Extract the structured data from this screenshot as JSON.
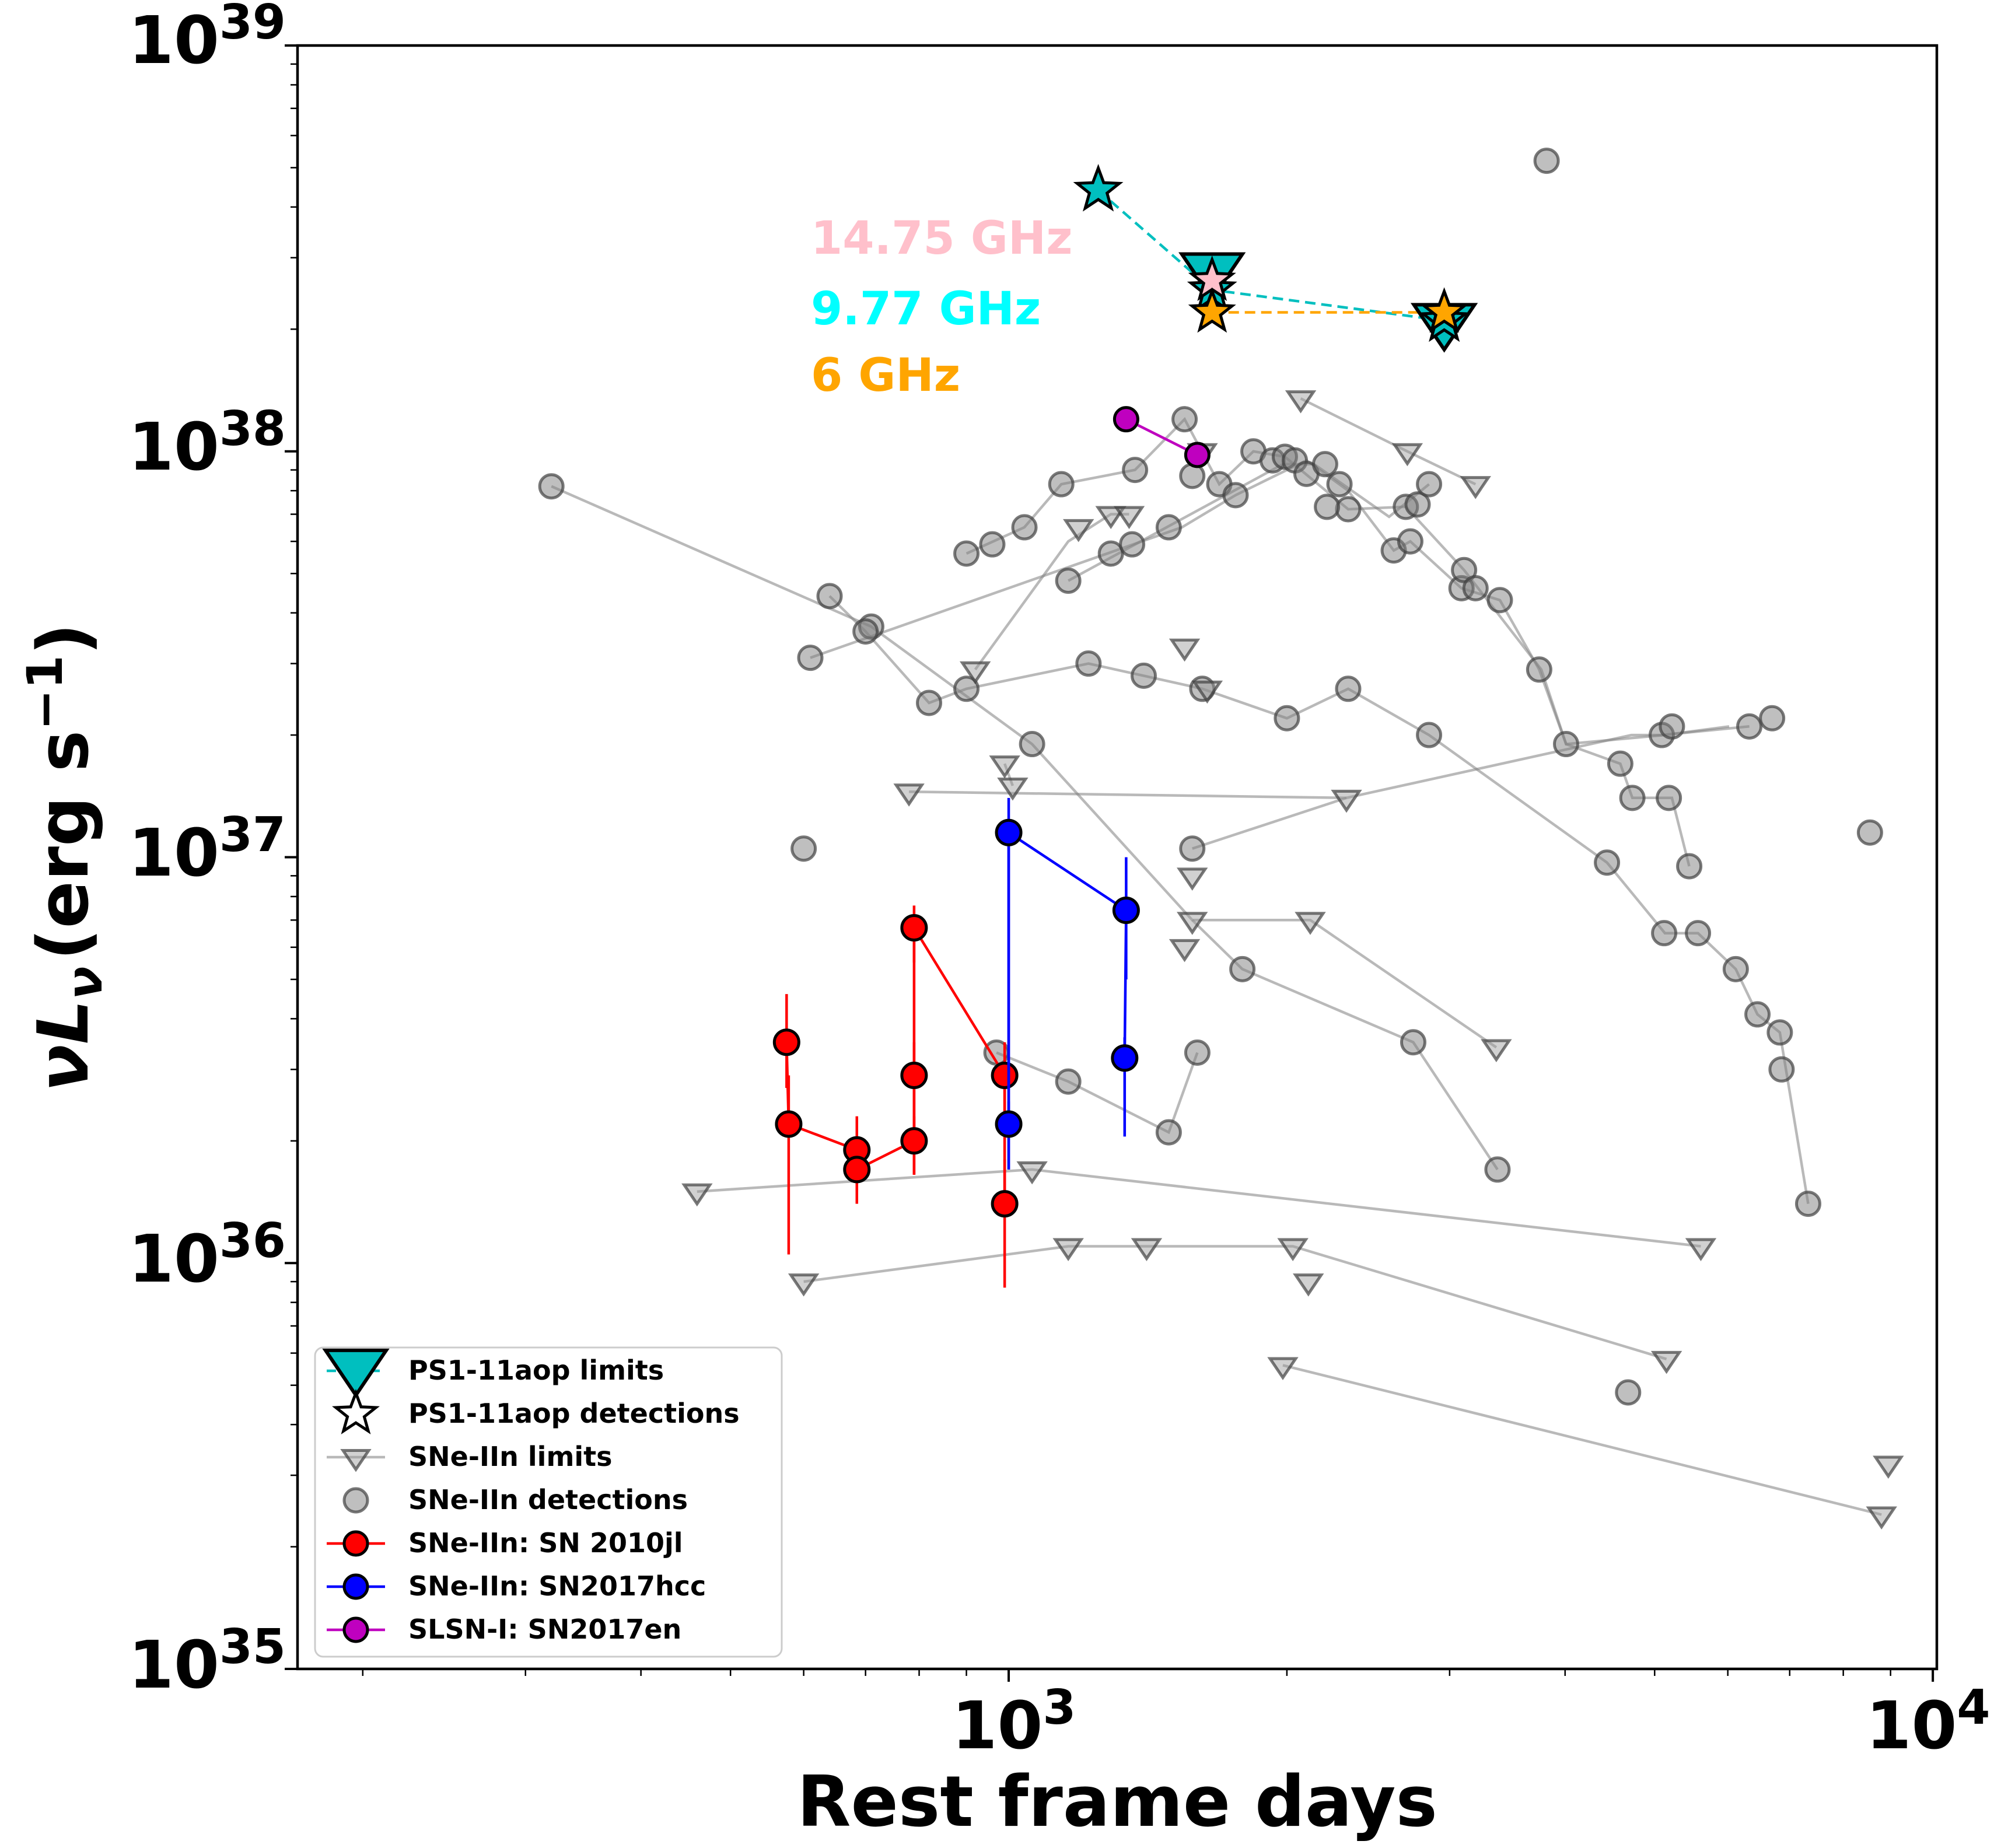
{
  "chart_data": {
    "type": "scatter",
    "xlabel": "Rest frame days",
    "ylabel": "νL",
    "ylabel_sub": "ν",
    "ylabel_unit_open": "(erg s",
    "ylabel_unit_sup": "−1",
    "ylabel_unit_close": ")",
    "x_scale": "log",
    "y_scale": "log",
    "xlim": [
      170,
      10100
    ],
    "ylim": [
      1e+35,
      1e+39
    ],
    "x_ticks": [
      {
        "value": 1000,
        "base": "10",
        "exp": "3"
      },
      {
        "value": 10000,
        "base": "10",
        "exp": "4"
      }
    ],
    "y_ticks": [
      {
        "value": 1e+35,
        "base": "10",
        "exp": "35"
      },
      {
        "value": 1e+36,
        "base": "10",
        "exp": "36"
      },
      {
        "value": 1e+37,
        "base": "10",
        "exp": "37"
      },
      {
        "value": 1e+38,
        "base": "10",
        "exp": "38"
      },
      {
        "value": 1e+39,
        "base": "10",
        "exp": "39"
      }
    ],
    "grid": false,
    "legend_position": "bottom-left",
    "legend": [
      {
        "label": "PS1-11aop limits",
        "marker": "triangle",
        "color": "#00bfbf",
        "line": "dashed",
        "big": true
      },
      {
        "label": "PS1-11aop detections",
        "marker": "star",
        "color": "#ffffff",
        "line": "none"
      },
      {
        "label": "SNe-IIn limits",
        "marker": "triangle",
        "color": "#808080",
        "line": "solid"
      },
      {
        "label": "SNe-IIn detections",
        "marker": "circle",
        "color": "#808080",
        "line": "none"
      },
      {
        "label": "SNe-IIn: SN 2010jl",
        "marker": "circle",
        "color": "#ff0000",
        "line": "solid"
      },
      {
        "label": "SNe-IIn: SN2017hcc",
        "marker": "circle",
        "color": "#0000ff",
        "line": "solid"
      },
      {
        "label": "SLSN-I: SN2017en",
        "marker": "circle",
        "color": "#bf00bf",
        "line": "solid"
      }
    ],
    "annotations": [
      {
        "text": "14.75 GHz",
        "color": "#ffc0cb"
      },
      {
        "text": "9.77 GHz",
        "color": "#00ffff"
      },
      {
        "text": "6 GHz",
        "color": "#ffa500"
      }
    ],
    "background_lines": [
      {
        "points": [
          [
            320,
            8.2e+37
          ],
          [
            710,
            3.7e+37
          ],
          [
            1060,
            1.9e+37
          ],
          [
            1580,
            7e+36
          ],
          [
            2120,
            7e+36
          ],
          [
            3370,
            3.4e+36
          ]
        ]
      },
      {
        "points": [
          [
            610,
            3.1e+37
          ],
          [
            1540,
            6.5e+37
          ],
          [
            1760,
            7.8e+37
          ],
          [
            2100,
            9.5e+37
          ],
          [
            2330,
            8e+37
          ],
          [
            2610,
            5.7e+37
          ],
          [
            2720,
            6e+37
          ],
          [
            3090,
            4.6e+37
          ],
          [
            3400,
            4.3e+37
          ],
          [
            3750,
            2.9e+37
          ],
          [
            4010,
            1.9e+37
          ],
          [
            4590,
            1.7e+37
          ],
          [
            4730,
            1.4e+37
          ],
          [
            5220,
            1.4e+37
          ],
          [
            5450,
            9.5e+36
          ]
        ]
      },
      {
        "points": [
          [
            640,
            4.4e+37
          ],
          [
            700,
            3.6e+37
          ],
          [
            820,
            2.4e+37
          ],
          [
            900,
            2.6e+37
          ],
          [
            1220,
            3e+37
          ],
          [
            1400,
            2.8e+37
          ],
          [
            1620,
            2.6e+37
          ],
          [
            2000,
            2.2e+37
          ],
          [
            2330,
            2.6e+37
          ],
          [
            2850,
            2e+37
          ],
          [
            4440,
            9.7e+36
          ],
          [
            5130,
            6.5e+36
          ],
          [
            5570,
            6.5e+36
          ],
          [
            6120,
            5.3e+36
          ],
          [
            6460,
            4.1e+36
          ],
          [
            6830,
            3.7e+36
          ],
          [
            7330,
            1.4e+36
          ]
        ]
      },
      {
        "points": [
          [
            900,
            5.6e+37
          ],
          [
            1040,
            6.5e+37
          ],
          [
            1140,
            8.3e+37
          ],
          [
            1370,
            9e+37
          ],
          [
            1550,
            1.2e+38
          ],
          [
            1690,
            8.3e+37
          ],
          [
            1840,
            1e+38
          ],
          [
            1990,
            9.7e+37
          ],
          [
            2330,
            7.2e+37
          ],
          [
            2690,
            7.3e+37
          ],
          [
            3110,
            5.1e+37
          ],
          [
            3770,
            2.9e+37
          ],
          [
            4010,
            1.9e+37
          ],
          [
            5120,
            2e+37
          ],
          [
            6020,
            2.1e+37
          ]
        ]
      },
      {
        "points": [
          [
            1160,
            4.8e+37
          ],
          [
            1980,
            9.3e+37
          ],
          [
            2140,
            9.3e+37
          ],
          [
            2580,
            6.9e+37
          ],
          [
            2850,
            8.3e+37
          ]
        ]
      },
      {
        "points": [
          [
            970,
            3.3e+36
          ],
          [
            1160,
            2.8e+36
          ],
          [
            1490,
            2.1e+36
          ],
          [
            1600,
            3.3e+36
          ]
        ]
      },
      {
        "points": [
          [
            1580,
            1.05e+37
          ],
          [
            2320,
            1.4e+37
          ],
          [
            4720,
            2e+37
          ],
          [
            5090,
            2e+37
          ],
          [
            6330,
            2.1e+37
          ]
        ]
      },
      {
        "points": [
          [
            1580,
            7e+36
          ],
          [
            1790,
            5.3e+36
          ],
          [
            2740,
            3.5e+36
          ],
          [
            3380,
            1.7e+36
          ]
        ]
      },
      {
        "points": [
          [
            460,
            1.5e+36
          ],
          [
            1060,
            1.7e+36
          ],
          [
            5610,
            1.1e+36
          ]
        ]
      },
      {
        "points": [
          [
            600,
            9e+35
          ],
          [
            1160,
            1.1e+36
          ],
          [
            1410,
            1.1e+36
          ],
          [
            2030,
            1.1e+36
          ],
          [
            5150,
            5.8e+35
          ]
        ]
      },
      {
        "points": [
          [
            1980,
            5.6e+35
          ],
          [
            8800,
            2.4e+35
          ]
        ]
      },
      {
        "points": [
          [
            780,
            1.45e+37
          ],
          [
            2320,
            1.4e+37
          ]
        ]
      },
      {
        "points": [
          [
            920,
            2.9e+37
          ],
          [
            1160,
            6e+37
          ],
          [
            1290,
            7e+37
          ],
          [
            1350,
            7e+37
          ]
        ]
      },
      {
        "points": [
          [
            2070,
            1.35e+38
          ],
          [
            2700,
            1e+38
          ],
          [
            3200,
            8.3e+37
          ]
        ]
      },
      {
        "points": [
          [
            990,
            1.7e+37
          ],
          [
            1010,
            1.5e+37
          ]
        ]
      }
    ],
    "background_detections": [
      [
        320,
        8.2e+37
      ],
      [
        710,
        3.7e+37
      ],
      [
        1060,
        1.9e+37
      ],
      [
        610,
        3.1e+37
      ],
      [
        640,
        4.4e+37
      ],
      [
        700,
        3.6e+37
      ],
      [
        820,
        2.4e+37
      ],
      [
        900,
        2.6e+37
      ],
      [
        900,
        5.6e+37
      ],
      [
        960,
        5.9e+37
      ],
      [
        1040,
        6.5e+37
      ],
      [
        1140,
        8.3e+37
      ],
      [
        1370,
        9e+37
      ],
      [
        1550,
        1.2e+38
      ],
      [
        1580,
        8.7e+37
      ],
      [
        1690,
        8.3e+37
      ],
      [
        1760,
        7.8e+37
      ],
      [
        1840,
        1e+38
      ],
      [
        1930,
        9.5e+37
      ],
      [
        1990,
        9.7e+37
      ],
      [
        2040,
        9.5e+37
      ],
      [
        2100,
        8.8e+37
      ],
      [
        2200,
        9.3e+37
      ],
      [
        2280,
        8.3e+37
      ],
      [
        2330,
        7.2e+37
      ],
      [
        2210,
        7.3e+37
      ],
      [
        2610,
        5.7e+37
      ],
      [
        2690,
        7.3e+37
      ],
      [
        2720,
        6e+37
      ],
      [
        2770,
        7.4e+37
      ],
      [
        2850,
        8.3e+37
      ],
      [
        3090,
        4.6e+37
      ],
      [
        3110,
        5.1e+37
      ],
      [
        3200,
        4.6e+37
      ],
      [
        3400,
        4.3e+37
      ],
      [
        3750,
        2.9e+37
      ],
      [
        4010,
        1.9e+37
      ],
      [
        4590,
        1.7e+37
      ],
      [
        4730,
        1.4e+37
      ],
      [
        5090,
        2e+37
      ],
      [
        5220,
        2.1e+37
      ],
      [
        5450,
        9.5e+36
      ],
      [
        5120,
        6.5e+36
      ],
      [
        5570,
        6.5e+36
      ],
      [
        6120,
        5.3e+36
      ],
      [
        6460,
        4.1e+36
      ],
      [
        6830,
        3.7e+36
      ],
      [
        6860,
        3e+36
      ],
      [
        7330,
        1.4e+36
      ],
      [
        6330,
        2.1e+37
      ],
      [
        6700,
        2.2e+37
      ],
      [
        1160,
        4.8e+37
      ],
      [
        1290,
        5.6e+37
      ],
      [
        1360,
        5.9e+37
      ],
      [
        1490,
        6.5e+37
      ],
      [
        1220,
        3e+37
      ],
      [
        1400,
        2.8e+37
      ],
      [
        1620,
        2.6e+37
      ],
      [
        2000,
        2.2e+37
      ],
      [
        2330,
        2.6e+37
      ],
      [
        2850,
        2e+37
      ],
      [
        4440,
        9.7e+36
      ],
      [
        5180,
        1.4e+37
      ],
      [
        970,
        3.3e+36
      ],
      [
        1160,
        2.8e+36
      ],
      [
        1490,
        2.1e+36
      ],
      [
        1600,
        3.3e+36
      ],
      [
        1580,
        1.05e+37
      ],
      [
        1790,
        5.3e+36
      ],
      [
        2740,
        3.5e+36
      ],
      [
        3380,
        1.7e+36
      ],
      [
        600,
        1.05e+37
      ],
      [
        3820,
        5.2e+38
      ],
      [
        4680,
        4.8e+35
      ],
      [
        8550,
        1.15e+37
      ]
    ],
    "background_limits": [
      [
        460,
        1.5e+36
      ],
      [
        1060,
        1.7e+36
      ],
      [
        5610,
        1.1e+36
      ],
      [
        600,
        9e+35
      ],
      [
        1160,
        1.1e+36
      ],
      [
        1410,
        1.1e+36
      ],
      [
        2030,
        1.1e+36
      ],
      [
        2110,
        9e+35
      ],
      [
        5150,
        5.8e+35
      ],
      [
        1980,
        5.6e+35
      ],
      [
        8800,
        2.4e+35
      ],
      [
        8950,
        3.2e+35
      ],
      [
        780,
        1.45e+37
      ],
      [
        2320,
        1.4e+37
      ],
      [
        920,
        2.9e+37
      ],
      [
        1190,
        6.5e+37
      ],
      [
        1290,
        7e+37
      ],
      [
        1350,
        7e+37
      ],
      [
        1550,
        3.3e+37
      ],
      [
        1640,
        2.6e+37
      ],
      [
        2070,
        1.35e+38
      ],
      [
        2700,
        1e+38
      ],
      [
        3200,
        8.3e+37
      ],
      [
        1550,
        6e+36
      ],
      [
        1580,
        7e+36
      ],
      [
        2120,
        7e+36
      ],
      [
        3370,
        3.4e+36
      ],
      [
        1580,
        9e+36
      ],
      [
        990,
        1.7e+37
      ],
      [
        1010,
        1.5e+37
      ],
      [
        1620,
        1e+38
      ]
    ],
    "sn2010jl": {
      "points": [
        {
          "x": 575,
          "y": 3.5e+36,
          "lo": 2.7e+36,
          "hi": 4.6e+36
        },
        {
          "x": 578,
          "y": 2.2e+36,
          "lo": 1.05e+36,
          "hi": 2.9e+36
        },
        {
          "x": 685,
          "y": 1.9e+36,
          "lo": 1.5e+36,
          "hi": 2.3e+36
        },
        {
          "x": 685,
          "y": 1.7e+36,
          "lo": 1.4e+36,
          "hi": 2e+36
        },
        {
          "x": 790,
          "y": 6.7e+36,
          "lo": 5.5e+36,
          "hi": 7.6e+36
        },
        {
          "x": 790,
          "y": 2.9e+36,
          "lo": 1.65e+36,
          "hi": 3.5e+36
        },
        {
          "x": 790,
          "y": 2e+36,
          "lo": 1.65e+36,
          "hi": 2.3e+36
        },
        {
          "x": 990,
          "y": 2.9e+36,
          "lo": 2.2e+36,
          "hi": 3.5e+36
        },
        {
          "x": 990,
          "y": 1.4e+36,
          "lo": 8.7e+35,
          "hi": 1.8e+36
        }
      ],
      "line": [
        [
          575,
          3.5e+36
        ],
        [
          578,
          2.2e+36
        ],
        [
          685,
          1.9e+36
        ],
        [
          685,
          1.7e+36
        ],
        [
          790,
          2e+36
        ],
        [
          790,
          6.7e+36
        ],
        [
          990,
          2.9e+36
        ],
        [
          990,
          1.4e+36
        ]
      ]
    },
    "sn2017hcc": {
      "points": [
        {
          "x": 1000,
          "y": 1.15e+37,
          "lo": 1.7e+36,
          "hi": 1.4e+37
        },
        {
          "x": 1000,
          "y": 2.2e+36,
          "lo": 1.7e+36,
          "hi": 2.5e+36
        },
        {
          "x": 1340,
          "y": 7.4e+36,
          "lo": 5e+36,
          "hi": 1e+37
        },
        {
          "x": 1335,
          "y": 3.2e+36,
          "lo": 2.05e+36,
          "hi": 3.6e+36
        }
      ],
      "line": [
        [
          1000,
          2.2e+36
        ],
        [
          1000,
          1.15e+37
        ],
        [
          1340,
          7.4e+36
        ],
        [
          1335,
          3.2e+36
        ]
      ]
    },
    "sn2017en": {
      "points": [
        [
          1340,
          1.2e+38
        ],
        [
          1600,
          9.8e+37
        ]
      ]
    },
    "ps1_11aop": {
      "det_977": [
        [
          1250,
          4.4e+38
        ],
        [
          1660,
          2.5e+38
        ],
        [
          2960,
          2.1e+38
        ]
      ],
      "det_1475": [
        [
          1660,
          2.6e+38
        ]
      ],
      "det_6": [
        [
          1660,
          2.2e+38
        ],
        [
          2960,
          2.2e+38
        ]
      ],
      "lim_977": [
        [
          1660,
          2.8e+38
        ],
        [
          2960,
          2.1e+38
        ]
      ]
    }
  }
}
